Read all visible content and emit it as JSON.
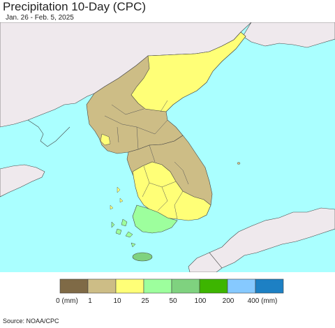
{
  "header": {
    "title": "Precipitation 10-Day (CPC)",
    "subtitle": "Jan. 26 - Feb. 5, 2025"
  },
  "colors": {
    "sea": "#aaffff",
    "foreign_land": "#efe9ed",
    "border": "#444444"
  },
  "legend": {
    "bins": [
      {
        "color": "#7f6a46",
        "label": "0 (mm)"
      },
      {
        "color": "#cdbd86",
        "label": "1"
      },
      {
        "color": "#ffff77",
        "label": "10"
      },
      {
        "color": "#9dff9d",
        "label": "25"
      },
      {
        "color": "#7fd27f",
        "label": "50"
      },
      {
        "color": "#3db500",
        "label": "100"
      },
      {
        "color": "#86c9ff",
        "label": "200"
      },
      {
        "color": "#1d80c4",
        "label": "400 (mm)"
      }
    ]
  },
  "footer": {
    "source": "Source: NOAA/CPC"
  }
}
